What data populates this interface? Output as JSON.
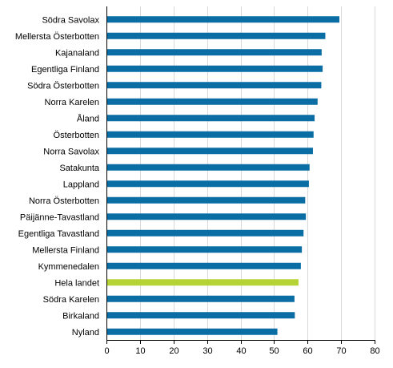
{
  "chart_data": {
    "type": "bar",
    "orientation": "horizontal",
    "categories": [
      "Södra Savolax",
      "Mellersta Österbotten",
      "Kajanaland",
      "Egentliga Finland",
      "Södra Österbotten",
      "Norra Karelen",
      "Åland",
      "Österbotten",
      "Norra Savolax",
      "Satakunta",
      "Lappland",
      "Norra Österbotten",
      "Päijänne-Tavastland",
      "Egentliga Tavastland",
      "Mellersta Finland",
      "Kymmenedalen",
      "Hela landet",
      "Södra Karelen",
      "Birkaland",
      "Nyland"
    ],
    "values": [
      69.5,
      65.3,
      64.2,
      64.5,
      64.1,
      63.0,
      62.1,
      61.8,
      61.6,
      60.6,
      60.4,
      59.3,
      59.5,
      58.8,
      58.3,
      58.0,
      57.3,
      56.1,
      56.2,
      51.0
    ],
    "highlight_category": "Hela landet",
    "colors": {
      "bar": "#0a6ea4",
      "highlight": "#b5d334",
      "grid": "#d9d9d9",
      "axis": "#000000"
    },
    "xlim": [
      0,
      80
    ],
    "xticks": [
      0,
      10,
      20,
      30,
      40,
      50,
      60,
      70,
      80
    ],
    "grid": "vertical",
    "title": "",
    "xlabel": "",
    "ylabel": ""
  }
}
